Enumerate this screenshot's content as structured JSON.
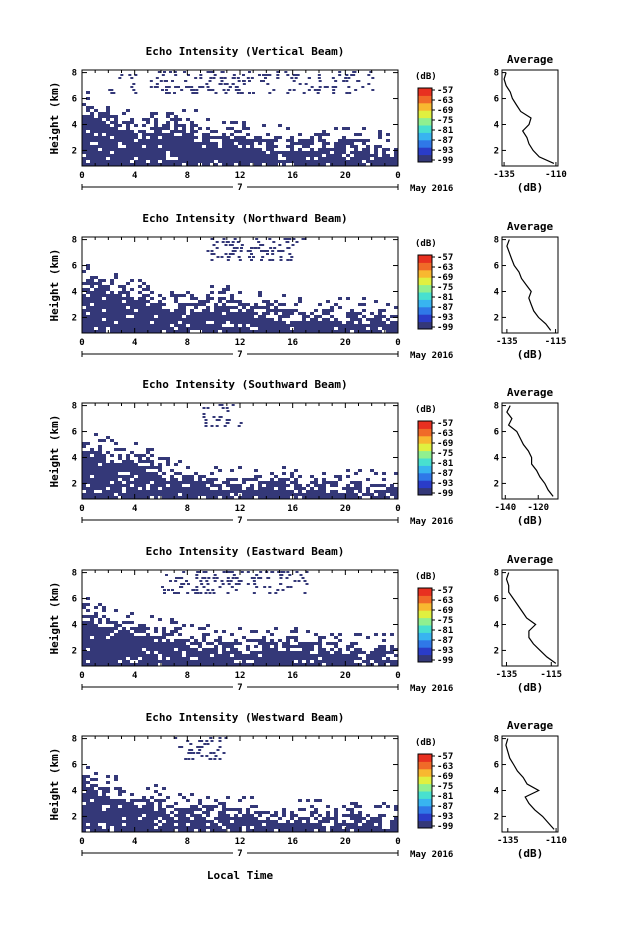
{
  "figure": {
    "xlabel": "Local Time",
    "date_label": "May 2016",
    "day_label": "7",
    "units_label": "(dB)",
    "avg_title": "Average",
    "avg_xlabel": "(dB)"
  },
  "colors": {
    "echo": "#343878",
    "colorbar": [
      "#343878",
      "#2a3cc8",
      "#2f78e8",
      "#38b4f0",
      "#48e0d0",
      "#90f090",
      "#e0f040",
      "#f8b830",
      "#f06a28",
      "#e83020"
    ]
  },
  "chart_data": [
    {
      "type": "heatmap",
      "title": "Echo Intensity (Vertical Beam)",
      "ylabel": "Height (km)",
      "x_ticks": [
        "0",
        "4",
        "8",
        "12",
        "16",
        "20",
        "0"
      ],
      "xlim": [
        0,
        24
      ],
      "ylim": [
        0.8,
        8.2
      ],
      "y_ticks": [
        "2",
        "4",
        "6",
        "8"
      ],
      "colorbar_ticks": [
        "-57",
        "-63",
        "-69",
        "-75",
        "-81",
        "-87",
        "-93",
        "-99"
      ],
      "echo_top_km": [
        5.8,
        5.4,
        5.0,
        4.6,
        4.2,
        4.0,
        4.3,
        4.8,
        4.5,
        3.9,
        3.6,
        3.4,
        3.3,
        3.2,
        3.1,
        3.1,
        3.0,
        3.0,
        3.0,
        2.9,
        2.9,
        2.9,
        2.8,
        2.4
      ],
      "upper_echo_hours": [
        2,
        5,
        6,
        7,
        8,
        9,
        10,
        11,
        12,
        14,
        16,
        17,
        19,
        20
      ],
      "average": {
        "height_km": [
          1.0,
          1.5,
          2.0,
          2.5,
          3.0,
          3.5,
          4.0,
          4.5,
          5.0,
          5.5,
          6.0,
          6.5,
          7.0,
          7.5,
          8.0
        ],
        "intensity_db": [
          -111,
          -118,
          -121,
          -123,
          -124,
          -126,
          -123,
          -122,
          -127,
          -129,
          -131,
          -132,
          -134,
          -135,
          -134
        ],
        "xlim": [
          -136,
          -109
        ],
        "x_ticks": [
          "-135",
          "-110"
        ],
        "y_ticks": [
          "2",
          "4",
          "6",
          "8"
        ]
      }
    },
    {
      "type": "heatmap",
      "title": "Echo Intensity (Northward Beam)",
      "ylabel": "Height (km)",
      "x_ticks": [
        "0",
        "4",
        "8",
        "12",
        "16",
        "20",
        "0"
      ],
      "xlim": [
        0,
        24
      ],
      "ylim": [
        0.8,
        8.2
      ],
      "y_ticks": [
        "2",
        "4",
        "6",
        "8"
      ],
      "colorbar_ticks": [
        "-57",
        "-63",
        "-69",
        "-75",
        "-81",
        "-87",
        "-93",
        "-99"
      ],
      "echo_top_km": [
        5.6,
        5.2,
        4.8,
        4.5,
        4.2,
        4.0,
        3.8,
        3.6,
        3.4,
        3.6,
        3.8,
        3.6,
        3.3,
        3.2,
        3.0,
        2.9,
        2.8,
        2.8,
        2.8,
        2.7,
        2.7,
        2.6,
        2.6,
        2.3
      ],
      "upper_echo_hours": [
        9,
        10,
        11,
        12,
        13,
        14,
        15
      ],
      "average": {
        "height_km": [
          1.0,
          1.5,
          2.0,
          2.5,
          3.0,
          3.5,
          4.0,
          4.5,
          5.0,
          5.5,
          6.0,
          6.5,
          7.0,
          7.5,
          8.0
        ],
        "intensity_db": [
          -117,
          -119,
          -122,
          -124,
          -125,
          -126,
          -125,
          -127,
          -129,
          -130,
          -132,
          -133,
          -134,
          -135,
          -134
        ],
        "xlim": [
          -137,
          -114
        ],
        "x_ticks": [
          "-135",
          "-115"
        ],
        "y_ticks": [
          "2",
          "4",
          "6",
          "8"
        ]
      }
    },
    {
      "type": "heatmap",
      "title": "Echo Intensity (Southward Beam)",
      "ylabel": "Height (km)",
      "x_ticks": [
        "0",
        "4",
        "8",
        "12",
        "16",
        "20",
        "0"
      ],
      "xlim": [
        0,
        24
      ],
      "ylim": [
        0.8,
        8.2
      ],
      "y_ticks": [
        "2",
        "4",
        "6",
        "8"
      ],
      "colorbar_ticks": [
        "-57",
        "-63",
        "-69",
        "-75",
        "-81",
        "-87",
        "-93",
        "-99"
      ],
      "echo_top_km": [
        5.4,
        5.0,
        4.6,
        4.3,
        4.5,
        4.0,
        3.5,
        3.0,
        2.8,
        2.7,
        2.6,
        2.6,
        2.6,
        2.5,
        2.5,
        2.4,
        2.4,
        2.4,
        2.3,
        2.3,
        2.2,
        2.2,
        2.1,
        2.0
      ],
      "upper_echo_hours": [
        9,
        10
      ],
      "average": {
        "height_km": [
          1.0,
          1.5,
          2.0,
          2.5,
          3.0,
          3.5,
          4.0,
          4.5,
          5.0,
          5.5,
          6.0,
          6.5,
          7.0,
          7.5,
          8.0
        ],
        "intensity_db": [
          -111,
          -114,
          -116,
          -119,
          -121,
          -124,
          -124,
          -126,
          -129,
          -131,
          -133,
          -138,
          -136,
          -139,
          -137
        ],
        "xlim": [
          -142,
          -108
        ],
        "x_ticks": [
          "-140",
          "-120"
        ],
        "y_ticks": [
          "2",
          "4",
          "6",
          "8"
        ]
      }
    },
    {
      "type": "heatmap",
      "title": "Echo Intensity (Eastward Beam)",
      "ylabel": "Height (km)",
      "x_ticks": [
        "0",
        "4",
        "8",
        "12",
        "16",
        "20",
        "0"
      ],
      "xlim": [
        0,
        24
      ],
      "ylim": [
        0.8,
        8.2
      ],
      "y_ticks": [
        "2",
        "4",
        "6",
        "8"
      ],
      "colorbar_ticks": [
        "-57",
        "-63",
        "-69",
        "-75",
        "-81",
        "-87",
        "-93",
        "-99"
      ],
      "echo_top_km": [
        5.4,
        5.0,
        4.6,
        4.3,
        4.2,
        4.0,
        3.8,
        3.6,
        3.3,
        3.2,
        3.1,
        3.1,
        3.0,
        3.0,
        2.9,
        2.9,
        2.9,
        2.8,
        2.8,
        2.7,
        2.7,
        2.6,
        2.6,
        2.4
      ],
      "upper_echo_hours": [
        6,
        7,
        8,
        9,
        10,
        11,
        13,
        14,
        15
      ],
      "average": {
        "height_km": [
          1.0,
          1.5,
          2.0,
          2.5,
          3.0,
          3.5,
          4.0,
          4.5,
          5.0,
          5.5,
          6.0,
          6.5,
          7.0,
          7.5,
          8.0
        ],
        "intensity_db": [
          -113,
          -117,
          -120,
          -123,
          -125,
          -125,
          -122,
          -126,
          -128,
          -130,
          -132,
          -134,
          -134,
          -135,
          -134
        ],
        "xlim": [
          -137,
          -112
        ],
        "x_ticks": [
          "-135",
          "-115"
        ],
        "y_ticks": [
          "2",
          "4",
          "6",
          "8"
        ]
      }
    },
    {
      "type": "heatmap",
      "title": "Echo Intensity (Westward Beam)",
      "ylabel": "Height (km)",
      "x_ticks": [
        "0",
        "4",
        "8",
        "12",
        "16",
        "20",
        "0"
      ],
      "xlim": [
        0,
        24
      ],
      "ylim": [
        0.8,
        8.2
      ],
      "y_ticks": [
        "2",
        "4",
        "6",
        "8"
      ],
      "colorbar_ticks": [
        "-57",
        "-63",
        "-69",
        "-75",
        "-81",
        "-87",
        "-93",
        "-99"
      ],
      "echo_top_km": [
        5.2,
        4.8,
        4.4,
        4.1,
        4.0,
        3.7,
        3.4,
        3.2,
        3.0,
        3.0,
        3.1,
        2.9,
        2.7,
        2.6,
        2.6,
        2.5,
        2.5,
        2.5,
        2.4,
        2.4,
        2.3,
        2.3,
        2.2,
        2.1
      ],
      "upper_echo_hours": [
        7,
        8,
        9
      ],
      "average": {
        "height_km": [
          1.0,
          1.5,
          2.0,
          2.5,
          3.0,
          3.5,
          4.0,
          4.5,
          5.0,
          5.5,
          6.0,
          6.5,
          7.0,
          7.5,
          8.0
        ],
        "intensity_db": [
          -111,
          -114,
          -117,
          -121,
          -124,
          -126,
          -119,
          -125,
          -127,
          -130,
          -132,
          -134,
          -135,
          -136,
          -135
        ],
        "xlim": [
          -138,
          -109
        ],
        "x_ticks": [
          "-135",
          "-110"
        ],
        "y_ticks": [
          "2",
          "4",
          "6",
          "8"
        ]
      }
    }
  ]
}
